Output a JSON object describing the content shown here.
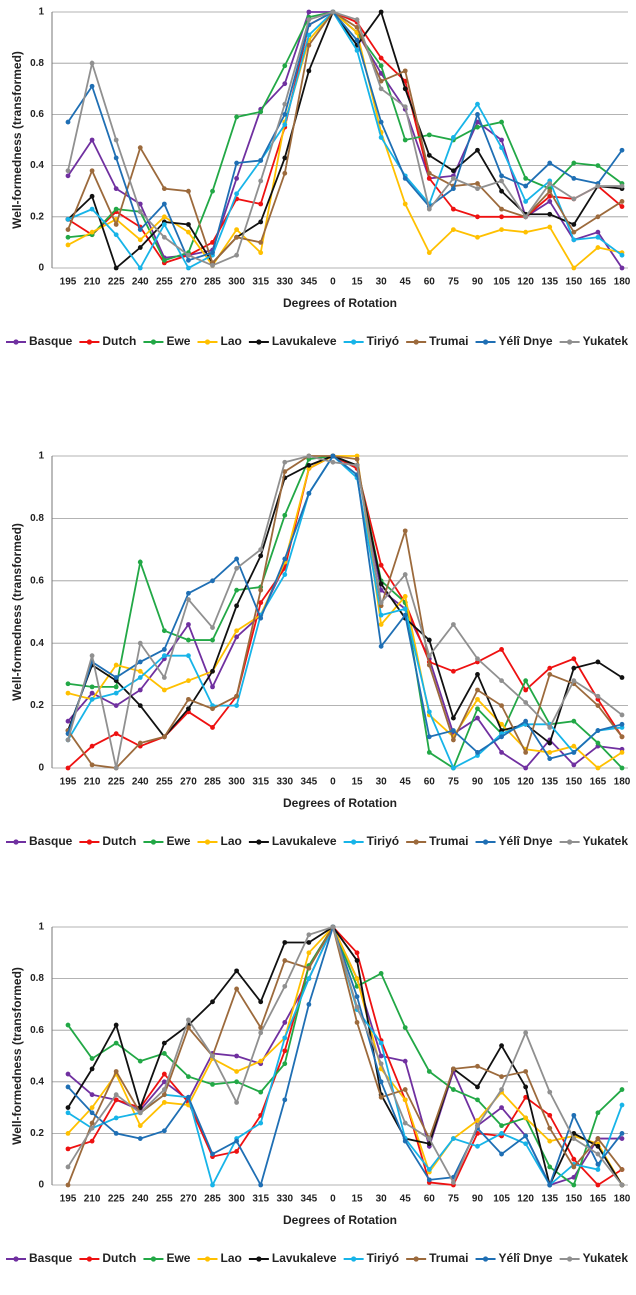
{
  "chart_data": [
    {
      "type": "line",
      "x_label": "Degrees of Rotation",
      "y_label": "Well-formedness (transformed)",
      "categories": [
        "195",
        "210",
        "225",
        "240",
        "255",
        "270",
        "285",
        "300",
        "315",
        "330",
        "345",
        "0",
        "15",
        "30",
        "45",
        "60",
        "75",
        "90",
        "105",
        "120",
        "135",
        "150",
        "165",
        "180"
      ],
      "ylim": [
        0,
        1
      ],
      "yticks": [
        0,
        0.2,
        0.4,
        0.6,
        0.8,
        1
      ],
      "grid": true,
      "legend": "bottom",
      "series": [
        {
          "name": "Basque",
          "color": "#7030a0",
          "values": [
            0.36,
            0.5,
            0.31,
            0.25,
            0.04,
            0.05,
            0.07,
            0.35,
            0.62,
            0.72,
            1.0,
            1.0,
            0.92,
            0.76,
            0.62,
            0.35,
            0.36,
            0.57,
            0.5,
            0.2,
            0.26,
            0.11,
            0.14,
            0.0
          ]
        },
        {
          "name": "Dutch",
          "color": "#ee1111",
          "values": [
            0.19,
            0.13,
            0.22,
            0.16,
            0.02,
            0.05,
            0.1,
            0.27,
            0.25,
            0.55,
            0.95,
            1.0,
            0.96,
            0.82,
            0.73,
            0.35,
            0.23,
            0.2,
            0.2,
            0.2,
            0.28,
            0.27,
            0.32,
            0.24
          ]
        },
        {
          "name": "Ewe",
          "color": "#22a846",
          "values": [
            0.12,
            0.13,
            0.23,
            0.22,
            0.03,
            0.06,
            0.3,
            0.59,
            0.61,
            0.79,
            0.98,
            1.0,
            0.92,
            0.79,
            0.5,
            0.52,
            0.5,
            0.55,
            0.57,
            0.35,
            0.31,
            0.41,
            0.4,
            0.33
          ]
        },
        {
          "name": "Lao",
          "color": "#ffc000",
          "values": [
            0.09,
            0.14,
            0.19,
            0.11,
            0.2,
            0.14,
            0.01,
            0.15,
            0.06,
            0.57,
            0.89,
            1.0,
            0.92,
            0.53,
            0.25,
            0.06,
            0.15,
            0.12,
            0.15,
            0.14,
            0.16,
            0.0,
            0.08,
            0.06
          ]
        },
        {
          "name": "Lavukaleve",
          "color": "#111111",
          "values": [
            0.19,
            0.28,
            0.0,
            0.08,
            0.18,
            0.17,
            0.02,
            0.12,
            0.18,
            0.43,
            0.77,
            1.0,
            0.87,
            1.0,
            0.7,
            0.44,
            0.38,
            0.46,
            0.3,
            0.21,
            0.21,
            0.17,
            0.32,
            0.31
          ]
        },
        {
          "name": "Tiriyó",
          "color": "#17b4e8",
          "values": [
            0.19,
            0.23,
            0.13,
            0.0,
            0.17,
            0.0,
            0.05,
            0.29,
            0.42,
            0.56,
            0.91,
            1.0,
            0.85,
            0.51,
            0.36,
            0.25,
            0.51,
            0.64,
            0.47,
            0.26,
            0.34,
            0.11,
            0.12,
            0.05
          ]
        },
        {
          "name": "Trumai",
          "color": "#9c6a3c",
          "values": [
            0.15,
            0.38,
            0.17,
            0.47,
            0.31,
            0.3,
            0.02,
            0.12,
            0.1,
            0.37,
            0.87,
            1.0,
            0.94,
            0.73,
            0.77,
            0.37,
            0.32,
            0.33,
            0.23,
            0.2,
            0.3,
            0.14,
            0.2,
            0.26
          ]
        },
        {
          "name": "Yélî Dnye",
          "color": "#1f6fb4",
          "values": [
            0.57,
            0.71,
            0.43,
            0.15,
            0.25,
            0.03,
            0.06,
            0.41,
            0.42,
            0.6,
            0.95,
            1.0,
            0.89,
            0.57,
            0.35,
            0.24,
            0.31,
            0.6,
            0.36,
            0.32,
            0.41,
            0.35,
            0.33,
            0.46
          ]
        },
        {
          "name": "Yukatek",
          "color": "#909090",
          "values": [
            0.38,
            0.8,
            0.5,
            0.22,
            0.12,
            0.05,
            0.01,
            0.05,
            0.34,
            0.64,
            0.97,
            1.0,
            0.97,
            0.7,
            0.63,
            0.23,
            0.35,
            0.31,
            0.34,
            0.2,
            0.33,
            0.27,
            0.32,
            0.32
          ]
        }
      ]
    },
    {
      "type": "line",
      "x_label": "Degrees of Rotation",
      "y_label": "Well-formedness (transformed)",
      "categories": [
        "195",
        "210",
        "225",
        "240",
        "255",
        "270",
        "285",
        "300",
        "315",
        "330",
        "345",
        "0",
        "15",
        "30",
        "45",
        "60",
        "75",
        "90",
        "105",
        "120",
        "135",
        "150",
        "165",
        "180"
      ],
      "ylim": [
        0,
        1
      ],
      "yticks": [
        0,
        0.2,
        0.4,
        0.6,
        0.8,
        1
      ],
      "grid": true,
      "legend": "bottom",
      "series": [
        {
          "name": "Basque",
          "color": "#7030a0",
          "values": [
            0.15,
            0.24,
            0.2,
            0.25,
            0.35,
            0.46,
            0.26,
            0.42,
            0.49,
            0.65,
            0.96,
            1.0,
            0.97,
            0.57,
            0.51,
            0.35,
            0.11,
            0.16,
            0.05,
            0.0,
            0.09,
            0.01,
            0.07,
            0.06
          ]
        },
        {
          "name": "Dutch",
          "color": "#ee1111",
          "values": [
            0.0,
            0.07,
            0.11,
            0.07,
            0.1,
            0.18,
            0.13,
            0.23,
            0.53,
            0.64,
            0.96,
            1.0,
            0.96,
            0.65,
            0.53,
            0.34,
            0.31,
            0.34,
            0.38,
            0.25,
            0.32,
            0.35,
            0.22,
            0.1
          ]
        },
        {
          "name": "Ewe",
          "color": "#22a846",
          "values": [
            0.27,
            0.26,
            0.26,
            0.66,
            0.44,
            0.41,
            0.41,
            0.57,
            0.58,
            0.81,
            0.99,
            1.0,
            0.97,
            0.6,
            0.53,
            0.05,
            0.0,
            0.19,
            0.11,
            0.28,
            0.14,
            0.15,
            0.08,
            0.0
          ]
        },
        {
          "name": "Lao",
          "color": "#ffc000",
          "values": [
            0.24,
            0.22,
            0.33,
            0.31,
            0.25,
            0.28,
            0.31,
            0.44,
            0.49,
            0.66,
            0.96,
            1.0,
            1.0,
            0.46,
            0.55,
            0.17,
            0.1,
            0.22,
            0.14,
            0.06,
            0.05,
            0.07,
            0.0,
            0.05
          ]
        },
        {
          "name": "Lavukaleve",
          "color": "#111111",
          "values": [
            0.12,
            0.33,
            0.28,
            0.2,
            0.1,
            0.19,
            0.31,
            0.52,
            0.68,
            0.93,
            0.97,
            1.0,
            0.97,
            0.59,
            0.48,
            0.41,
            0.16,
            0.3,
            0.12,
            0.14,
            0.08,
            0.32,
            0.34,
            0.29
          ]
        },
        {
          "name": "Tiriyó",
          "color": "#17b4e8",
          "values": [
            0.09,
            0.22,
            0.24,
            0.29,
            0.36,
            0.36,
            0.2,
            0.2,
            0.49,
            0.62,
            0.88,
            1.0,
            0.93,
            0.49,
            0.51,
            0.18,
            0.0,
            0.04,
            0.11,
            0.14,
            0.14,
            0.05,
            0.12,
            0.13
          ]
        },
        {
          "name": "Trumai",
          "color": "#9c6a3c",
          "values": [
            0.12,
            0.01,
            0.0,
            0.08,
            0.1,
            0.22,
            0.19,
            0.23,
            0.57,
            0.95,
            1.0,
            1.0,
            0.99,
            0.52,
            0.76,
            0.33,
            0.09,
            0.25,
            0.2,
            0.05,
            0.3,
            0.27,
            0.2,
            0.1
          ]
        },
        {
          "name": "Yélî Dnye",
          "color": "#1f6fb4",
          "values": [
            0.11,
            0.34,
            0.29,
            0.34,
            0.38,
            0.56,
            0.6,
            0.67,
            0.48,
            0.67,
            0.88,
            1.0,
            0.94,
            0.39,
            0.49,
            0.1,
            0.12,
            0.05,
            0.1,
            0.15,
            0.03,
            0.05,
            0.12,
            0.14
          ]
        },
        {
          "name": "Yukatek",
          "color": "#909090",
          "values": [
            0.09,
            0.36,
            0.0,
            0.4,
            0.29,
            0.54,
            0.45,
            0.64,
            0.7,
            0.98,
            1.0,
            0.98,
            0.97,
            0.53,
            0.62,
            0.36,
            0.46,
            0.35,
            0.28,
            0.21,
            0.13,
            0.28,
            0.23,
            0.17
          ]
        }
      ]
    },
    {
      "type": "line",
      "x_label": "Degrees of Rotation",
      "y_label": "Well-formedness (transformed)",
      "categories": [
        "195",
        "210",
        "225",
        "240",
        "255",
        "270",
        "285",
        "300",
        "315",
        "330",
        "345",
        "0",
        "15",
        "30",
        "45",
        "60",
        "75",
        "90",
        "105",
        "120",
        "135",
        "150",
        "165",
        "180"
      ],
      "ylim": [
        0,
        1
      ],
      "yticks": [
        0,
        0.2,
        0.4,
        0.6,
        0.8,
        1
      ],
      "grid": true,
      "legend": "bottom",
      "series": [
        {
          "name": "Basque",
          "color": "#7030a0",
          "values": [
            0.43,
            0.35,
            0.33,
            0.29,
            0.4,
            0.33,
            0.51,
            0.5,
            0.47,
            0.63,
            0.8,
            1.0,
            0.8,
            0.5,
            0.48,
            0.15,
            0.44,
            0.23,
            0.3,
            0.19,
            0.0,
            0.03,
            0.18,
            0.18
          ]
        },
        {
          "name": "Dutch",
          "color": "#ee1111",
          "values": [
            0.14,
            0.17,
            0.33,
            0.3,
            0.43,
            0.32,
            0.11,
            0.13,
            0.27,
            0.52,
            0.85,
            1.0,
            0.9,
            0.56,
            0.33,
            0.01,
            0.0,
            0.2,
            0.19,
            0.34,
            0.27,
            0.1,
            0.0,
            0.06
          ]
        },
        {
          "name": "Ewe",
          "color": "#22a846",
          "values": [
            0.62,
            0.49,
            0.55,
            0.48,
            0.51,
            0.42,
            0.39,
            0.4,
            0.36,
            0.47,
            0.85,
            1.0,
            0.77,
            0.82,
            0.61,
            0.44,
            0.37,
            0.33,
            0.23,
            0.26,
            0.07,
            0.0,
            0.28,
            0.37
          ]
        },
        {
          "name": "Lao",
          "color": "#ffc000",
          "values": [
            0.2,
            0.3,
            0.43,
            0.23,
            0.32,
            0.31,
            0.49,
            0.44,
            0.48,
            0.57,
            0.9,
            1.0,
            0.8,
            0.45,
            0.33,
            0.05,
            0.18,
            0.25,
            0.36,
            0.26,
            0.17,
            0.19,
            0.16,
            0.0
          ]
        },
        {
          "name": "Lavukaleve",
          "color": "#111111",
          "values": [
            0.3,
            0.45,
            0.62,
            0.3,
            0.55,
            0.62,
            0.71,
            0.83,
            0.71,
            0.94,
            0.94,
            1.0,
            0.87,
            0.35,
            0.18,
            0.16,
            0.45,
            0.38,
            0.54,
            0.38,
            0.0,
            0.2,
            0.15,
            0.0
          ]
        },
        {
          "name": "Tiriyó",
          "color": "#17b4e8",
          "values": [
            0.28,
            0.22,
            0.26,
            0.28,
            0.35,
            0.34,
            0.0,
            0.18,
            0.24,
            0.57,
            0.8,
            1.0,
            0.68,
            0.55,
            0.18,
            0.06,
            0.18,
            0.15,
            0.2,
            0.16,
            0.0,
            0.08,
            0.06,
            0.31
          ]
        },
        {
          "name": "Trumai",
          "color": "#9c6a3c",
          "values": [
            0.0,
            0.24,
            0.44,
            0.28,
            0.35,
            0.61,
            0.5,
            0.76,
            0.61,
            0.87,
            0.84,
            1.0,
            0.63,
            0.34,
            0.37,
            0.18,
            0.45,
            0.46,
            0.42,
            0.44,
            0.22,
            0.07,
            0.18,
            0.06
          ]
        },
        {
          "name": "Yélî Dnye",
          "color": "#1f6fb4",
          "values": [
            0.38,
            0.28,
            0.2,
            0.18,
            0.21,
            0.34,
            0.12,
            0.17,
            0.0,
            0.33,
            0.7,
            1.0,
            0.73,
            0.4,
            0.17,
            0.02,
            0.03,
            0.22,
            0.12,
            0.19,
            0.0,
            0.27,
            0.08,
            0.2
          ]
        },
        {
          "name": "Yukatek",
          "color": "#909090",
          "values": [
            0.07,
            0.22,
            0.35,
            0.28,
            0.37,
            0.64,
            0.5,
            0.32,
            0.59,
            0.77,
            0.97,
            1.0,
            0.69,
            0.47,
            0.24,
            0.18,
            0.01,
            0.23,
            0.37,
            0.59,
            0.36,
            0.18,
            0.12,
            0.0
          ]
        }
      ]
    }
  ]
}
